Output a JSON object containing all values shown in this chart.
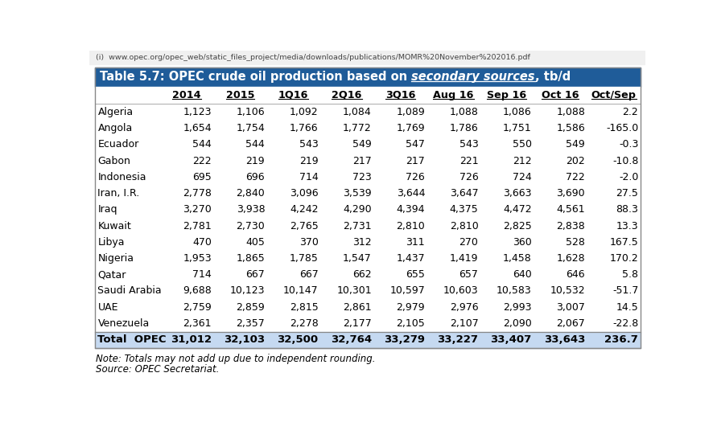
{
  "title_plain": "Table 5.7: OPEC crude oil production based on ",
  "title_italic_underline": "secondary sources",
  "title_suffix": ", tb/d",
  "url": "www.opec.org/opec_web/static_files_project/media/downloads/publications/MOMR%20November%202016.pdf",
  "columns": [
    "2014",
    "2015",
    "1Q16",
    "2Q16",
    "3Q16",
    "Aug 16",
    "Sep 16",
    "Oct 16",
    "Oct/Sep"
  ],
  "countries": [
    "Algeria",
    "Angola",
    "Ecuador",
    "Gabon",
    "Indonesia",
    "Iran, I.R.",
    "Iraq",
    "Kuwait",
    "Libya",
    "Nigeria",
    "Qatar",
    "Saudi Arabia",
    "UAE",
    "Venezuela"
  ],
  "data": [
    [
      "1,123",
      "1,106",
      "1,092",
      "1,084",
      "1,089",
      "1,088",
      "1,086",
      "1,088",
      "2.2"
    ],
    [
      "1,654",
      "1,754",
      "1,766",
      "1,772",
      "1,769",
      "1,786",
      "1,751",
      "1,586",
      "-165.0"
    ],
    [
      "544",
      "544",
      "543",
      "549",
      "547",
      "543",
      "550",
      "549",
      "-0.3"
    ],
    [
      "222",
      "219",
      "219",
      "217",
      "217",
      "221",
      "212",
      "202",
      "-10.8"
    ],
    [
      "695",
      "696",
      "714",
      "723",
      "726",
      "726",
      "724",
      "722",
      "-2.0"
    ],
    [
      "2,778",
      "2,840",
      "3,096",
      "3,539",
      "3,644",
      "3,647",
      "3,663",
      "3,690",
      "27.5"
    ],
    [
      "3,270",
      "3,938",
      "4,242",
      "4,290",
      "4,394",
      "4,375",
      "4,472",
      "4,561",
      "88.3"
    ],
    [
      "2,781",
      "2,730",
      "2,765",
      "2,731",
      "2,810",
      "2,810",
      "2,825",
      "2,838",
      "13.3"
    ],
    [
      "470",
      "405",
      "370",
      "312",
      "311",
      "270",
      "360",
      "528",
      "167.5"
    ],
    [
      "1,953",
      "1,865",
      "1,785",
      "1,547",
      "1,437",
      "1,419",
      "1,458",
      "1,628",
      "170.2"
    ],
    [
      "714",
      "667",
      "667",
      "662",
      "655",
      "657",
      "640",
      "646",
      "5.8"
    ],
    [
      "9,688",
      "10,123",
      "10,147",
      "10,301",
      "10,597",
      "10,603",
      "10,583",
      "10,532",
      "-51.7"
    ],
    [
      "2,759",
      "2,859",
      "2,815",
      "2,861",
      "2,979",
      "2,976",
      "2,993",
      "3,007",
      "14.5"
    ],
    [
      "2,361",
      "2,357",
      "2,278",
      "2,177",
      "2,105",
      "2,107",
      "2,090",
      "2,067",
      "-22.8"
    ]
  ],
  "total_row": [
    "31,012",
    "32,103",
    "32,500",
    "32,764",
    "33,279",
    "33,227",
    "33,407",
    "33,643",
    "236.7"
  ],
  "note": "Note: Totals may not add up due to independent rounding.",
  "source": "Source: OPEC Secretariat.",
  "header_bg": "#1f5c99",
  "header_text_color": "#ffffff",
  "total_row_bg": "#c5d9f1",
  "table_bg": "#ffffff",
  "border_color": "#999999",
  "url_color": "#555555",
  "url_text": "(i)  www.opec.org/opec_web/static_files_project/media/downloads/publications/MOMR%20November%202016.pdf"
}
